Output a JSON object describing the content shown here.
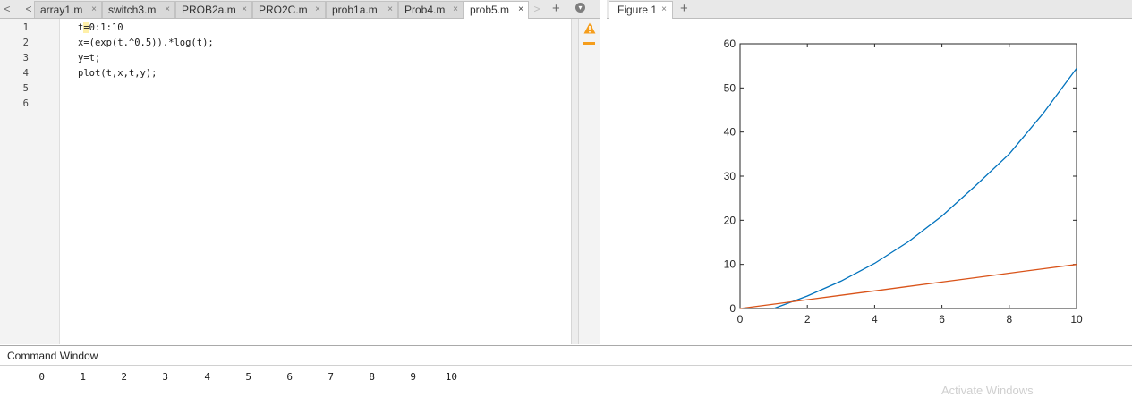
{
  "editor": {
    "tabs": [
      {
        "label": "array1.m",
        "active": false
      },
      {
        "label": "switch3.m",
        "active": false
      },
      {
        "label": "PROB2a.m",
        "active": false
      },
      {
        "label": "PRO2C.m",
        "active": false
      },
      {
        "label": "prob1a.m",
        "active": false
      },
      {
        "label": "Prob4.m",
        "active": false
      },
      {
        "label": "prob5.m",
        "active": true
      }
    ],
    "close_glyph": "×",
    "add_glyph": "+",
    "nav_left_glyph": "<",
    "nav_right_glyph": ">",
    "line_numbers": [
      "1",
      "2",
      "3",
      "4",
      "5",
      "6"
    ],
    "code": {
      "line1_pre": "t",
      "line1_hl": "=",
      "line1_post": "0:1:10",
      "line2": "x=(exp(t.^0.5)).*log(t);",
      "line3": "y=t;",
      "line4": "plot(t,x,t,y);"
    },
    "warning_icon": "warning-triangle-icon",
    "warning_color": "#f59d1b"
  },
  "figure": {
    "tab_label": "Figure 1",
    "close_glyph": "×",
    "add_glyph": "+"
  },
  "chart_data": {
    "type": "line",
    "x": [
      0,
      1,
      2,
      3,
      4,
      5,
      6,
      7,
      8,
      9,
      10
    ],
    "series": [
      {
        "color": "#0072bd",
        "x": [
          1,
          2,
          3,
          4,
          5,
          6,
          7,
          8,
          9,
          10
        ],
        "values": [
          0,
          2.84,
          6.2,
          10.24,
          15.12,
          20.95,
          27.86,
          35.03,
          44.14,
          54.43
        ]
      },
      {
        "color": "#d95319",
        "x": [
          0,
          1,
          2,
          3,
          4,
          5,
          6,
          7,
          8,
          9,
          10
        ],
        "values": [
          0,
          1,
          2,
          3,
          4,
          5,
          6,
          7,
          8,
          9,
          10
        ]
      }
    ],
    "xlim": [
      0,
      10
    ],
    "ylim": [
      0,
      60
    ],
    "xticks": [
      "0",
      "2",
      "4",
      "6",
      "8",
      "10"
    ],
    "yticks": [
      "0",
      "10",
      "20",
      "30",
      "40",
      "50",
      "60"
    ],
    "grid": false
  },
  "command_window": {
    "title": "Command Window",
    "output": [
      "0",
      "1",
      "2",
      "3",
      "4",
      "5",
      "6",
      "7",
      "8",
      "9",
      "10"
    ],
    "watermark": "Activate Windows"
  }
}
